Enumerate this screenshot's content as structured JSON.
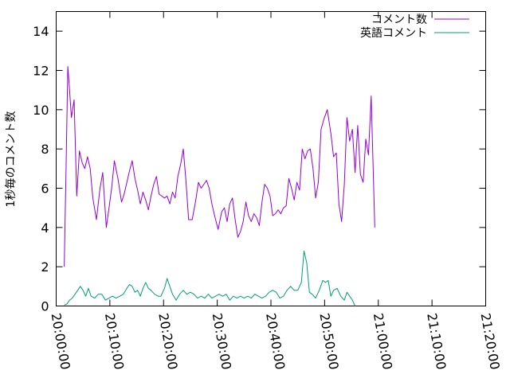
{
  "chart_data": {
    "type": "line",
    "title": "",
    "xlabel": "",
    "ylabel": "1秒毎のコメント数",
    "xlim": [
      "20:00:00",
      "21:20:00"
    ],
    "ylim": [
      0,
      15
    ],
    "x_ticks": [
      "20:00:00",
      "20:10:00",
      "20:20:00",
      "20:30:00",
      "20:40:00",
      "20:50:00",
      "21:00:00",
      "21:10:00",
      "21:20:00"
    ],
    "y_ticks": [
      "0",
      "2",
      "4",
      "6",
      "8",
      "10",
      "12",
      "14"
    ],
    "grid": false,
    "legend_position": "top-right",
    "series": [
      {
        "name": "コメント数",
        "color": "#9400d3",
        "points": [
          [
            "20:01:30",
            2.0
          ],
          [
            "20:01:50",
            7.0
          ],
          [
            "20:02:10",
            12.2
          ],
          [
            "20:02:30",
            11.0
          ],
          [
            "20:02:50",
            9.6
          ],
          [
            "20:03:20",
            10.5
          ],
          [
            "20:03:50",
            5.6
          ],
          [
            "20:04:20",
            7.9
          ],
          [
            "20:04:50",
            7.3
          ],
          [
            "20:05:20",
            7.0
          ],
          [
            "20:05:50",
            7.6
          ],
          [
            "20:06:20",
            7.0
          ],
          [
            "20:06:50",
            5.5
          ],
          [
            "20:07:30",
            4.4
          ],
          [
            "20:08:10",
            6.0
          ],
          [
            "20:08:40",
            6.8
          ],
          [
            "20:09:20",
            4.0
          ],
          [
            "20:09:50",
            5.0
          ],
          [
            "20:10:20",
            6.0
          ],
          [
            "20:10:50",
            7.4
          ],
          [
            "20:11:30",
            6.5
          ],
          [
            "20:12:10",
            5.3
          ],
          [
            "20:12:40",
            5.7
          ],
          [
            "20:13:10",
            6.3
          ],
          [
            "20:13:40",
            6.9
          ],
          [
            "20:14:10",
            7.4
          ],
          [
            "20:14:40",
            6.5
          ],
          [
            "20:15:10",
            5.9
          ],
          [
            "20:15:40",
            5.2
          ],
          [
            "20:16:10",
            5.8
          ],
          [
            "20:16:40",
            5.4
          ],
          [
            "20:17:10",
            4.9
          ],
          [
            "20:17:40",
            5.6
          ],
          [
            "20:18:10",
            6.2
          ],
          [
            "20:18:40",
            6.6
          ],
          [
            "20:19:10",
            5.7
          ],
          [
            "20:19:40",
            5.6
          ],
          [
            "20:20:10",
            5.5
          ],
          [
            "20:20:40",
            5.6
          ],
          [
            "20:21:10",
            5.2
          ],
          [
            "20:21:40",
            5.8
          ],
          [
            "20:22:10",
            5.5
          ],
          [
            "20:22:40",
            6.6
          ],
          [
            "20:23:10",
            7.2
          ],
          [
            "20:23:40",
            8.0
          ],
          [
            "20:24:10",
            6.4
          ],
          [
            "20:24:40",
            4.4
          ],
          [
            "20:25:20",
            4.4
          ],
          [
            "20:26:00",
            5.4
          ],
          [
            "20:26:30",
            6.3
          ],
          [
            "20:27:00",
            6.0
          ],
          [
            "20:27:30",
            6.2
          ],
          [
            "20:28:00",
            6.4
          ],
          [
            "20:28:30",
            6.0
          ],
          [
            "20:29:00",
            5.2
          ],
          [
            "20:29:30",
            4.6
          ],
          [
            "20:30:10",
            3.9
          ],
          [
            "20:30:50",
            4.8
          ],
          [
            "20:31:20",
            5.0
          ],
          [
            "20:31:50",
            4.3
          ],
          [
            "20:32:20",
            5.2
          ],
          [
            "20:32:50",
            5.5
          ],
          [
            "20:33:20",
            4.4
          ],
          [
            "20:33:50",
            3.5
          ],
          [
            "20:34:20",
            3.8
          ],
          [
            "20:34:50",
            4.3
          ],
          [
            "20:35:20",
            5.3
          ],
          [
            "20:35:50",
            4.6
          ],
          [
            "20:36:20",
            4.3
          ],
          [
            "20:36:50",
            4.7
          ],
          [
            "20:37:20",
            4.5
          ],
          [
            "20:37:50",
            4.1
          ],
          [
            "20:38:20",
            5.3
          ],
          [
            "20:38:50",
            6.2
          ],
          [
            "20:39:20",
            6.0
          ],
          [
            "20:39:50",
            5.6
          ],
          [
            "20:40:20",
            4.6
          ],
          [
            "20:40:50",
            4.7
          ],
          [
            "20:41:20",
            4.9
          ],
          [
            "20:41:50",
            4.7
          ],
          [
            "20:42:20",
            5.0
          ],
          [
            "20:42:50",
            5.1
          ],
          [
            "20:43:20",
            6.5
          ],
          [
            "20:43:50",
            6.0
          ],
          [
            "20:44:20",
            5.4
          ],
          [
            "20:44:50",
            6.3
          ],
          [
            "20:45:20",
            5.9
          ],
          [
            "20:45:50",
            8.0
          ],
          [
            "20:46:20",
            7.5
          ],
          [
            "20:46:50",
            7.9
          ],
          [
            "20:47:20",
            8.0
          ],
          [
            "20:47:50",
            7.0
          ],
          [
            "20:48:20",
            5.5
          ],
          [
            "20:48:50",
            6.3
          ],
          [
            "20:49:20",
            9.0
          ],
          [
            "20:49:50",
            9.5
          ],
          [
            "20:50:30",
            10.0
          ],
          [
            "20:51:10",
            8.8
          ],
          [
            "20:51:40",
            7.6
          ],
          [
            "20:52:10",
            7.8
          ],
          [
            "20:52:40",
            5.2
          ],
          [
            "20:53:10",
            4.3
          ],
          [
            "20:53:40",
            6.2
          ],
          [
            "20:54:10",
            9.6
          ],
          [
            "20:54:40",
            8.4
          ],
          [
            "20:55:10",
            9.0
          ],
          [
            "20:55:40",
            6.8
          ],
          [
            "20:56:10",
            9.2
          ],
          [
            "20:56:40",
            6.7
          ],
          [
            "20:57:10",
            6.3
          ],
          [
            "20:57:40",
            8.5
          ],
          [
            "20:58:10",
            7.7
          ],
          [
            "20:58:40",
            10.7
          ],
          [
            "20:59:10",
            5.8
          ],
          [
            "20:59:20",
            4.0
          ]
        ]
      },
      {
        "name": "英語コメント",
        "color": "#009e73",
        "points": [
          [
            "20:01:30",
            0.05
          ],
          [
            "20:02:00",
            0.1
          ],
          [
            "20:02:30",
            0.3
          ],
          [
            "20:03:00",
            0.4
          ],
          [
            "20:03:30",
            0.6
          ],
          [
            "20:04:00",
            0.8
          ],
          [
            "20:04:30",
            1.0
          ],
          [
            "20:05:00",
            0.8
          ],
          [
            "20:05:30",
            0.5
          ],
          [
            "20:06:00",
            0.9
          ],
          [
            "20:06:30",
            0.5
          ],
          [
            "20:07:10",
            0.4
          ],
          [
            "20:07:50",
            0.6
          ],
          [
            "20:08:30",
            0.6
          ],
          [
            "20:09:10",
            0.3
          ],
          [
            "20:09:50",
            0.4
          ],
          [
            "20:10:30",
            0.5
          ],
          [
            "20:11:10",
            0.4
          ],
          [
            "20:11:50",
            0.5
          ],
          [
            "20:12:30",
            0.6
          ],
          [
            "20:13:10",
            0.9
          ],
          [
            "20:13:40",
            1.1
          ],
          [
            "20:14:10",
            1.0
          ],
          [
            "20:14:40",
            0.7
          ],
          [
            "20:15:10",
            0.8
          ],
          [
            "20:15:40",
            0.5
          ],
          [
            "20:16:10",
            0.9
          ],
          [
            "20:16:40",
            1.2
          ],
          [
            "20:17:10",
            0.9
          ],
          [
            "20:17:40",
            0.8
          ],
          [
            "20:18:20",
            0.6
          ],
          [
            "20:19:00",
            0.5
          ],
          [
            "20:19:30",
            0.5
          ],
          [
            "20:20:10",
            0.9
          ],
          [
            "20:20:40",
            1.4
          ],
          [
            "20:21:10",
            1.0
          ],
          [
            "20:21:40",
            0.6
          ],
          [
            "20:22:20",
            0.3
          ],
          [
            "20:23:00",
            0.6
          ],
          [
            "20:23:40",
            0.8
          ],
          [
            "20:24:20",
            0.6
          ],
          [
            "20:25:00",
            0.7
          ],
          [
            "20:25:40",
            0.6
          ],
          [
            "20:26:20",
            0.4
          ],
          [
            "20:27:00",
            0.5
          ],
          [
            "20:27:40",
            0.4
          ],
          [
            "20:28:20",
            0.6
          ],
          [
            "20:29:00",
            0.4
          ],
          [
            "20:29:40",
            0.5
          ],
          [
            "20:30:20",
            0.6
          ],
          [
            "20:31:00",
            0.5
          ],
          [
            "20:31:40",
            0.6
          ],
          [
            "20:32:20",
            0.3
          ],
          [
            "20:33:00",
            0.5
          ],
          [
            "20:33:40",
            0.4
          ],
          [
            "20:34:20",
            0.5
          ],
          [
            "20:35:00",
            0.4
          ],
          [
            "20:35:40",
            0.5
          ],
          [
            "20:36:20",
            0.4
          ],
          [
            "20:37:00",
            0.6
          ],
          [
            "20:37:40",
            0.5
          ],
          [
            "20:38:20",
            0.4
          ],
          [
            "20:39:00",
            0.5
          ],
          [
            "20:39:40",
            0.7
          ],
          [
            "20:40:20",
            0.8
          ],
          [
            "20:41:00",
            0.7
          ],
          [
            "20:41:40",
            0.4
          ],
          [
            "20:42:20",
            0.5
          ],
          [
            "20:43:00",
            0.8
          ],
          [
            "20:43:40",
            1.0
          ],
          [
            "20:44:20",
            0.8
          ],
          [
            "20:45:00",
            0.8
          ],
          [
            "20:45:40",
            1.2
          ],
          [
            "20:46:10",
            2.8
          ],
          [
            "20:46:40",
            2.2
          ],
          [
            "20:47:10",
            0.7
          ],
          [
            "20:47:40",
            0.6
          ],
          [
            "20:48:20",
            0.4
          ],
          [
            "20:49:00",
            0.8
          ],
          [
            "20:49:40",
            1.3
          ],
          [
            "20:50:10",
            1.2
          ],
          [
            "20:50:40",
            1.3
          ],
          [
            "20:51:10",
            0.5
          ],
          [
            "20:51:40",
            0.8
          ],
          [
            "20:52:20",
            0.9
          ],
          [
            "20:53:00",
            0.5
          ],
          [
            "20:53:40",
            0.3
          ],
          [
            "20:54:10",
            0.7
          ],
          [
            "20:54:40",
            0.5
          ],
          [
            "20:55:10",
            0.3
          ],
          [
            "20:55:40",
            0.0
          ]
        ]
      }
    ]
  }
}
